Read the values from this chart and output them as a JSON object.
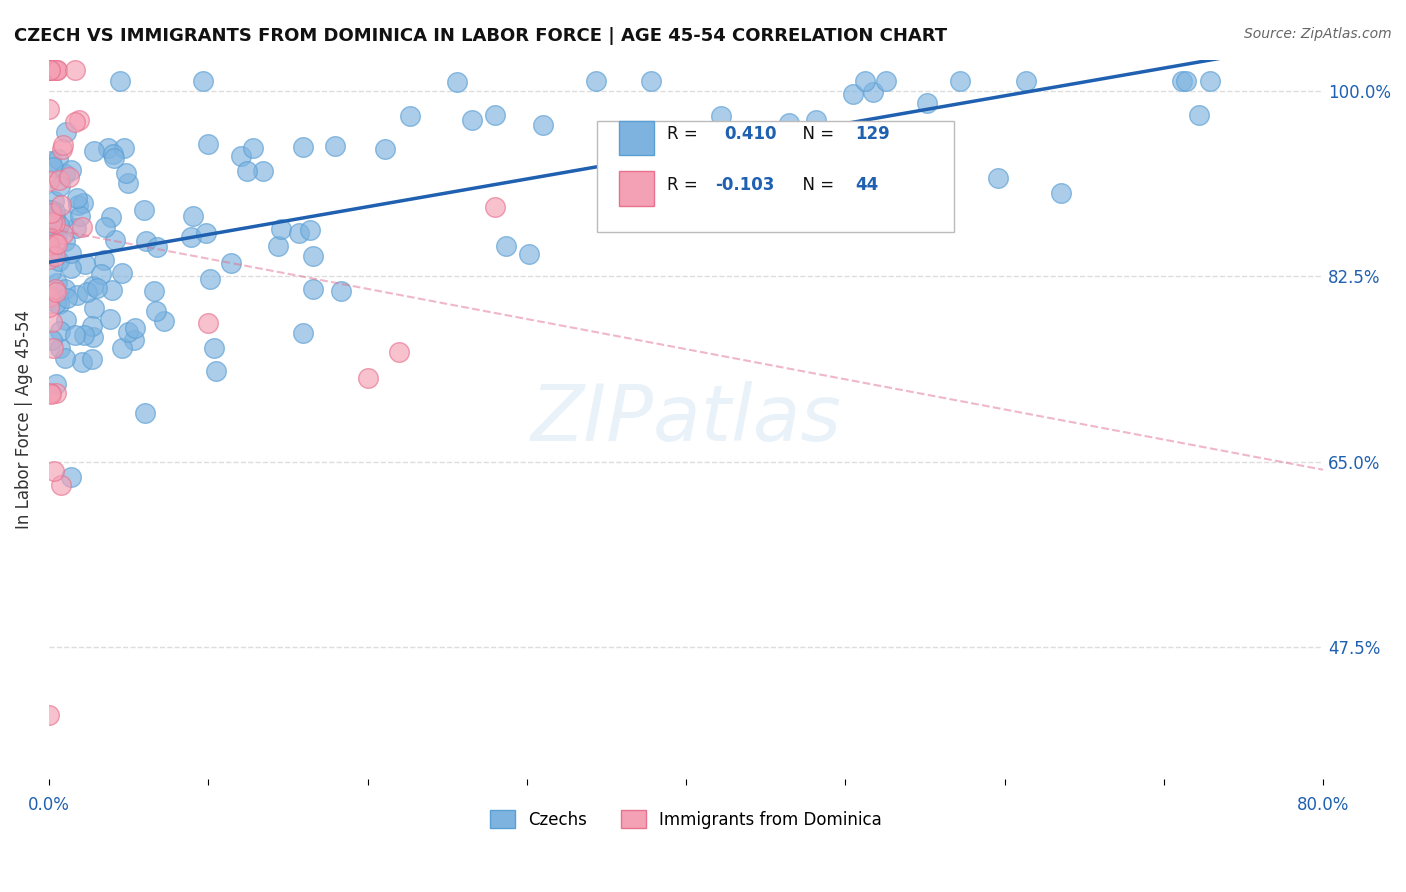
{
  "title": "CZECH VS IMMIGRANTS FROM DOMINICA IN LABOR FORCE | AGE 45-54 CORRELATION CHART",
  "source": "Source: ZipAtlas.com",
  "ylabel": "In Labor Force | Age 45-54",
  "xmin": 0.0,
  "xmax": 0.8,
  "ymin": 0.35,
  "ymax": 1.03,
  "ytick_vals": [
    0.475,
    0.65,
    0.825,
    1.0
  ],
  "ytick_labels": [
    "47.5%",
    "65.0%",
    "82.5%",
    "100.0%"
  ],
  "grid_color": "#dddddd",
  "r_czech": 0.41,
  "n_czech": 129,
  "r_dominica": -0.103,
  "n_dominica": 44,
  "czech_color": "#7eb3e0",
  "czech_edge_color": "#5a9fd4",
  "dominica_color": "#f4a0b5",
  "dominica_edge_color": "#e8728e",
  "trend_czech_color": "#2060b0",
  "trend_dominica_color": "#e07090",
  "watermark": "ZIPatlas"
}
